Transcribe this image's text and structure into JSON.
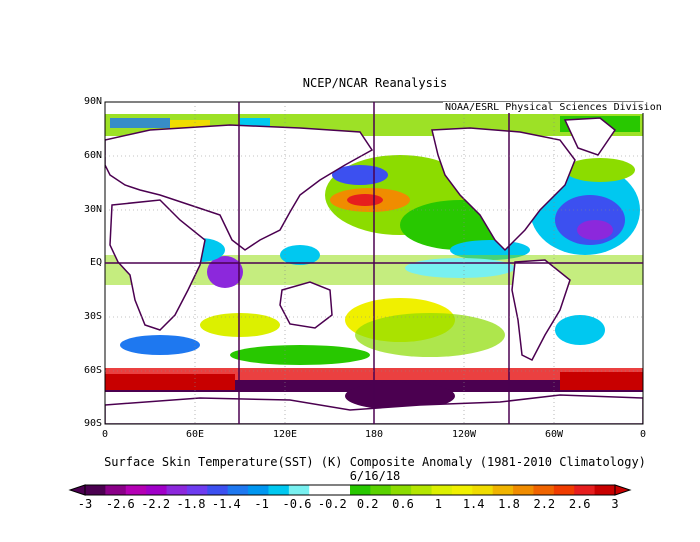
{
  "header": {
    "title": "NCEP/NCAR Reanalysis",
    "credit": "NOAA/ESRL Physical Sciences Division"
  },
  "map": {
    "lat_labels": [
      "90N",
      "60N",
      "30N",
      "EQ",
      "30S",
      "60S",
      "90S"
    ],
    "lon_labels": [
      "0",
      "60E",
      "120E",
      "180",
      "120W",
      "60W",
      "0"
    ],
    "field": "Surface Skin Temperature (SST) anomaly"
  },
  "caption": {
    "line1": "Surface Skin Temperature(SST) (K) Composite Anomaly (1981-2010 Climatology)",
    "line2": "6/16/18"
  },
  "colorbar": {
    "labels": [
      "-3",
      "-2.6",
      "-2.2",
      "-1.8",
      "-1.4",
      "-1",
      "-0.6",
      "-0.2",
      "0.2",
      "0.6",
      "1",
      "1.4",
      "1.8",
      "2.2",
      "2.6",
      "3"
    ],
    "colors": [
      "#4b0050",
      "#8a0088",
      "#b400b4",
      "#a000c8",
      "#8c28dc",
      "#6e3cf0",
      "#3c50f0",
      "#1e78f0",
      "#0096f0",
      "#00c8f0",
      "#78f0f0",
      "#ffffff",
      "#ffffff",
      "#28c800",
      "#5ad200",
      "#8cdc00",
      "#b4e600",
      "#dcf000",
      "#f0f000",
      "#f0dc00",
      "#f0b400",
      "#f08c00",
      "#f06400",
      "#f03c00",
      "#e61e1e",
      "#c80000"
    ]
  }
}
